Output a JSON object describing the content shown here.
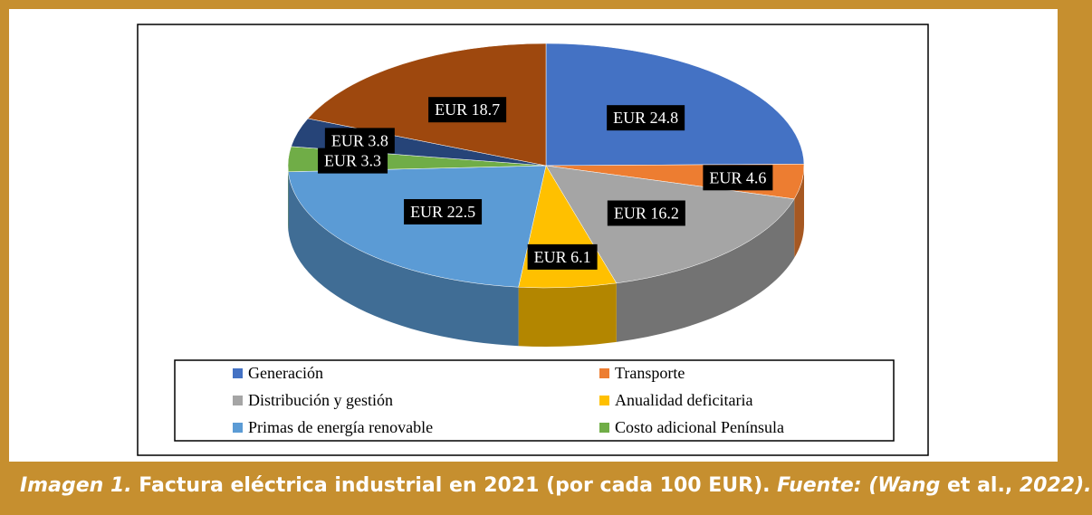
{
  "chart_data": {
    "type": "pie3d",
    "categories": [
      "Generación",
      "Transporte",
      "Distribución y gestión",
      "Anualidad deficitaria",
      "Primas de energía renovable",
      "Costo adicional Península",
      null,
      null
    ],
    "values": [
      24.8,
      4.6,
      16.2,
      6.1,
      22.5,
      3.3,
      3.8,
      18.7
    ],
    "value_labels": [
      "EUR 24.8",
      "EUR 4.6",
      "EUR 16.2",
      "EUR 6.1",
      "EUR 22.5",
      "EUR 3.3",
      "EUR 3.8",
      "EUR 18.7"
    ],
    "colors": [
      "#4472c4",
      "#ed7d31",
      "#a5a5a5",
      "#ffc000",
      "#5b9bd5",
      "#70ad47",
      "#264478",
      "#9e480e"
    ],
    "legend": "bottom"
  },
  "caption": [
    "Imagen 1.",
    " Factura eléctrica industrial en 2021 (por cada 100 EUR). ",
    "Fuente: (Wang",
    " et al., ",
    "2022)."
  ]
}
